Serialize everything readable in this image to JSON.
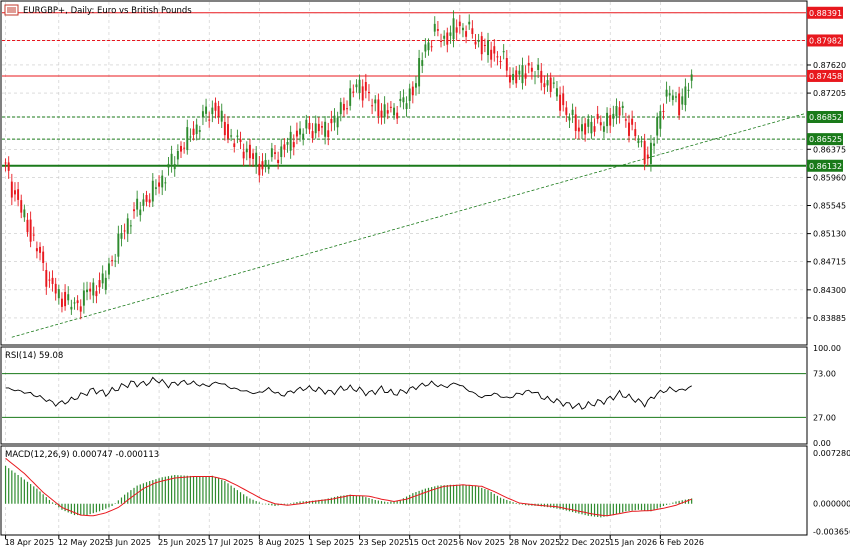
{
  "header": {
    "symbol_title": "EURGBP+, Daily:  Euro vs British Pounds"
  },
  "chart_data": {
    "type": "candlestick",
    "title": "EURGBP+, Daily:  Euro vs British Pounds",
    "colors": {
      "up": "#2e8b2e",
      "down": "#e8181e",
      "resistance": "#e8181e",
      "support": "#1a7a1a",
      "trendline": "#1a7a1a",
      "macd_signal": "#e8181e",
      "macd_hist": "#2e8b2e",
      "rsi_line": "#000000",
      "grid": "#c8c8c8"
    },
    "grid": true,
    "price_axis": {
      "ylim": [
        0.835,
        0.8855
      ],
      "ticks": [
        "0.83885",
        "0.84300",
        "0.84715",
        "0.85130",
        "0.85545",
        "0.85960",
        "0.86375",
        "0.87205",
        "0.87620"
      ]
    },
    "x_axis": {
      "ticks": [
        {
          "label": "18 Apr 2025",
          "index": 0
        },
        {
          "label": "12 May 2025",
          "index": 17
        },
        {
          "label": "3 Jun 2025",
          "index": 33
        },
        {
          "label": "25 Jun 2025",
          "index": 49
        },
        {
          "label": "17 Jul 2025",
          "index": 65
        },
        {
          "label": "8 Aug 2025",
          "index": 81
        },
        {
          "label": "1 Sep 2025",
          "index": 97
        },
        {
          "label": "23 Sep 2025",
          "index": 113
        },
        {
          "label": "15 Oct 2025",
          "index": 129
        },
        {
          "label": "6 Nov 2025",
          "index": 145
        },
        {
          "label": "28 Nov 2025",
          "index": 161
        },
        {
          "label": "22 Dec 2025",
          "index": 177
        },
        {
          "label": "15 Jan 2026",
          "index": 193
        },
        {
          "label": "6 Feb 2026",
          "index": 209
        }
      ]
    },
    "levels": [
      {
        "label": "0.88391",
        "value": 0.88391,
        "style": "solid",
        "color": "#e8181e"
      },
      {
        "label": "0.87982",
        "value": 0.87982,
        "style": "dashed",
        "color": "#e8181e"
      },
      {
        "label": "0.87458",
        "value": 0.87458,
        "style": "solid",
        "color": "#e8181e"
      },
      {
        "label": "0.86852",
        "value": 0.86852,
        "style": "dashed",
        "color": "#1a7a1a"
      },
      {
        "label": "0.86525",
        "value": 0.86525,
        "style": "dashed",
        "color": "#1a7a1a"
      },
      {
        "label": "0.86132",
        "value": 0.86132,
        "style": "solid-thick",
        "color": "#1a7a1a"
      }
    ],
    "trendline": {
      "start": {
        "index": 2,
        "value": 0.836
      },
      "end": {
        "index": 255,
        "value": 0.869
      }
    },
    "price_anchors": [
      [
        0,
        0.861
      ],
      [
        3,
        0.857
      ],
      [
        6,
        0.8535
      ],
      [
        10,
        0.849
      ],
      [
        14,
        0.844
      ],
      [
        17,
        0.842
      ],
      [
        22,
        0.8405
      ],
      [
        27,
        0.843
      ],
      [
        31,
        0.844
      ],
      [
        36,
        0.85
      ],
      [
        40,
        0.854
      ],
      [
        44,
        0.856
      ],
      [
        48,
        0.858
      ],
      [
        52,
        0.861
      ],
      [
        56,
        0.864
      ],
      [
        60,
        0.8665
      ],
      [
        64,
        0.869
      ],
      [
        67,
        0.87
      ],
      [
        70,
        0.8665
      ],
      [
        74,
        0.8645
      ],
      [
        77,
        0.8635
      ],
      [
        81,
        0.861
      ],
      [
        85,
        0.8625
      ],
      [
        89,
        0.864
      ],
      [
        93,
        0.866
      ],
      [
        97,
        0.867
      ],
      [
        101,
        0.8665
      ],
      [
        105,
        0.868
      ],
      [
        109,
        0.871
      ],
      [
        113,
        0.8735
      ],
      [
        117,
        0.8705
      ],
      [
        121,
        0.869
      ],
      [
        125,
        0.87
      ],
      [
        128,
        0.871
      ],
      [
        131,
        0.874
      ],
      [
        134,
        0.879
      ],
      [
        137,
        0.881
      ],
      [
        140,
        0.88
      ],
      [
        143,
        0.8815
      ],
      [
        146,
        0.882
      ],
      [
        149,
        0.8805
      ],
      [
        152,
        0.879
      ],
      [
        155,
        0.878
      ],
      [
        158,
        0.8775
      ],
      [
        161,
        0.8745
      ],
      [
        164,
        0.8745
      ],
      [
        167,
        0.876
      ],
      [
        170,
        0.8745
      ],
      [
        173,
        0.8735
      ],
      [
        176,
        0.872
      ],
      [
        179,
        0.869
      ],
      [
        182,
        0.8675
      ],
      [
        185,
        0.8665
      ],
      [
        188,
        0.868
      ],
      [
        191,
        0.867
      ],
      [
        194,
        0.8695
      ],
      [
        197,
        0.869
      ],
      [
        200,
        0.8665
      ],
      [
        203,
        0.864
      ],
      [
        205,
        0.8625
      ],
      [
        207,
        0.865
      ],
      [
        209,
        0.87
      ],
      [
        212,
        0.872
      ],
      [
        215,
        0.8705
      ],
      [
        217,
        0.872
      ],
      [
        219,
        0.874
      ]
    ],
    "rsi": {
      "label": "RSI(14) 59.08",
      "ylim": [
        0,
        100
      ],
      "ticks": [
        "100.00",
        "73.00",
        "27.00",
        "0.00"
      ],
      "levels": [
        73,
        27
      ],
      "anchors": [
        [
          0,
          58
        ],
        [
          4,
          55
        ],
        [
          8,
          52
        ],
        [
          12,
          47
        ],
        [
          16,
          41
        ],
        [
          20,
          44
        ],
        [
          24,
          50
        ],
        [
          28,
          56
        ],
        [
          32,
          52
        ],
        [
          36,
          58
        ],
        [
          40,
          63
        ],
        [
          44,
          62
        ],
        [
          48,
          67
        ],
        [
          52,
          61
        ],
        [
          56,
          64
        ],
        [
          60,
          63
        ],
        [
          64,
          60
        ],
        [
          68,
          64
        ],
        [
          72,
          58
        ],
        [
          76,
          55
        ],
        [
          80,
          52
        ],
        [
          84,
          57
        ],
        [
          88,
          50
        ],
        [
          92,
          55
        ],
        [
          96,
          58
        ],
        [
          100,
          56
        ],
        [
          104,
          53
        ],
        [
          108,
          58
        ],
        [
          112,
          57
        ],
        [
          116,
          52
        ],
        [
          120,
          57
        ],
        [
          124,
          52
        ],
        [
          128,
          55
        ],
        [
          132,
          60
        ],
        [
          136,
          63
        ],
        [
          140,
          59
        ],
        [
          144,
          63
        ],
        [
          148,
          55
        ],
        [
          152,
          48
        ],
        [
          156,
          52
        ],
        [
          160,
          47
        ],
        [
          164,
          52
        ],
        [
          168,
          55
        ],
        [
          172,
          47
        ],
        [
          176,
          44
        ],
        [
          180,
          40
        ],
        [
          184,
          38
        ],
        [
          188,
          42
        ],
        [
          192,
          45
        ],
        [
          196,
          52
        ],
        [
          200,
          47
        ],
        [
          204,
          41
        ],
        [
          208,
          52
        ],
        [
          212,
          57
        ],
        [
          215,
          55
        ],
        [
          219,
          59
        ]
      ]
    },
    "macd": {
      "label": "MACD(12,26,9) 0.000747 -0.000113",
      "ylim": [
        -0.004,
        0.0075
      ],
      "ticks": [
        "0.007280",
        "0.000000",
        "-0.003656"
      ],
      "hist_anchors": [
        [
          0,
          0.005
        ],
        [
          5,
          0.0035
        ],
        [
          10,
          0.002
        ],
        [
          14,
          0.0005
        ],
        [
          18,
          -0.0008
        ],
        [
          22,
          -0.0015
        ],
        [
          26,
          -0.0015
        ],
        [
          30,
          -0.001
        ],
        [
          34,
          -0.0003
        ],
        [
          38,
          0.0012
        ],
        [
          42,
          0.0024
        ],
        [
          46,
          0.003
        ],
        [
          50,
          0.0035
        ],
        [
          54,
          0.0038
        ],
        [
          58,
          0.0037
        ],
        [
          62,
          0.0036
        ],
        [
          66,
          0.0037
        ],
        [
          70,
          0.003
        ],
        [
          74,
          0.0018
        ],
        [
          78,
          0.0007
        ],
        [
          82,
          0.0
        ],
        [
          86,
          -0.0003
        ],
        [
          90,
          0.0
        ],
        [
          94,
          0.0003
        ],
        [
          98,
          0.0004
        ],
        [
          102,
          0.0006
        ],
        [
          106,
          0.001
        ],
        [
          110,
          0.0012
        ],
        [
          114,
          0.001
        ],
        [
          118,
          0.0005
        ],
        [
          122,
          0.0002
        ],
        [
          126,
          0.0005
        ],
        [
          130,
          0.0014
        ],
        [
          134,
          0.002
        ],
        [
          138,
          0.0024
        ],
        [
          142,
          0.0025
        ],
        [
          146,
          0.0025
        ],
        [
          150,
          0.0024
        ],
        [
          154,
          0.0018
        ],
        [
          158,
          0.0008
        ],
        [
          162,
          0.0002
        ],
        [
          166,
          -0.0002
        ],
        [
          170,
          -0.0003
        ],
        [
          174,
          -0.0005
        ],
        [
          178,
          -0.0008
        ],
        [
          182,
          -0.0012
        ],
        [
          186,
          -0.0016
        ],
        [
          190,
          -0.0018
        ],
        [
          194,
          -0.0015
        ],
        [
          198,
          -0.001
        ],
        [
          202,
          -0.0008
        ],
        [
          206,
          -0.001
        ],
        [
          210,
          -0.0003
        ],
        [
          214,
          0.0003
        ],
        [
          219,
          0.0007
        ]
      ],
      "signal_anchors": [
        [
          0,
          0.006
        ],
        [
          6,
          0.004
        ],
        [
          12,
          0.0015
        ],
        [
          18,
          -0.0005
        ],
        [
          24,
          -0.0015
        ],
        [
          28,
          -0.0016
        ],
        [
          32,
          -0.0012
        ],
        [
          36,
          -0.0005
        ],
        [
          40,
          0.0008
        ],
        [
          44,
          0.002
        ],
        [
          48,
          0.0028
        ],
        [
          54,
          0.0034
        ],
        [
          60,
          0.0036
        ],
        [
          66,
          0.0036
        ],
        [
          70,
          0.0032
        ],
        [
          74,
          0.0024
        ],
        [
          78,
          0.0015
        ],
        [
          82,
          0.0006
        ],
        [
          86,
          0.0
        ],
        [
          90,
          -0.0002
        ],
        [
          94,
          0.0
        ],
        [
          98,
          0.0003
        ],
        [
          104,
          0.0006
        ],
        [
          110,
          0.0011
        ],
        [
          116,
          0.001
        ],
        [
          120,
          0.0006
        ],
        [
          124,
          0.0003
        ],
        [
          128,
          0.0006
        ],
        [
          132,
          0.0012
        ],
        [
          136,
          0.0018
        ],
        [
          140,
          0.0023
        ],
        [
          146,
          0.0025
        ],
        [
          152,
          0.0023
        ],
        [
          156,
          0.0016
        ],
        [
          160,
          0.0008
        ],
        [
          164,
          0.0001
        ],
        [
          170,
          -0.0002
        ],
        [
          176,
          -0.0004
        ],
        [
          182,
          -0.0009
        ],
        [
          188,
          -0.0014
        ],
        [
          192,
          -0.0016
        ],
        [
          196,
          -0.0013
        ],
        [
          200,
          -0.001
        ],
        [
          206,
          -0.0009
        ],
        [
          210,
          -0.0006
        ],
        [
          214,
          -0.0002
        ],
        [
          219,
          0.0006
        ]
      ]
    }
  }
}
